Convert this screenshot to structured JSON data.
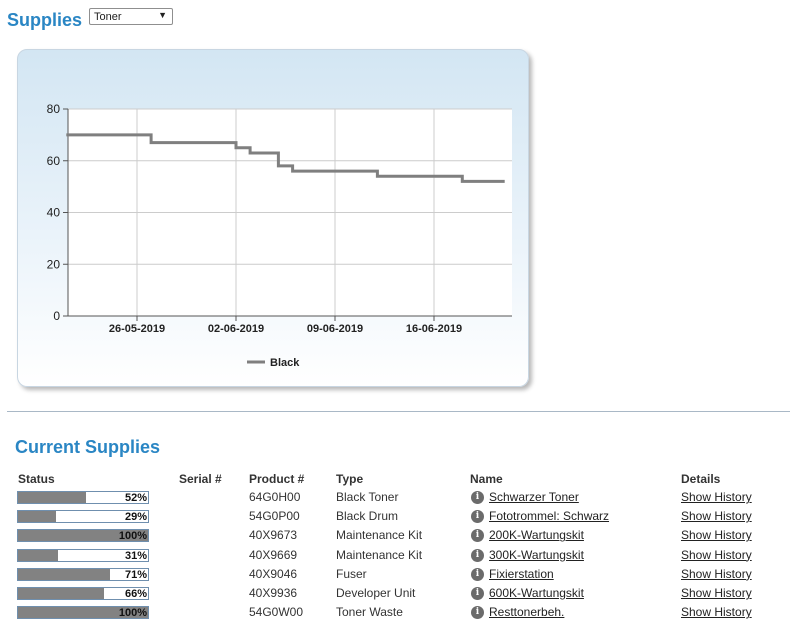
{
  "header": {
    "title": "Supplies",
    "filter_value": "Toner"
  },
  "chart_data": {
    "type": "line",
    "x_tick_labels": [
      "26-05-2019",
      "02-06-2019",
      "09-06-2019",
      "16-06-2019"
    ],
    "x": [
      "2019-05-21",
      "2019-05-27",
      "2019-05-27",
      "2019-06-02",
      "2019-06-02",
      "2019-06-03",
      "2019-06-03",
      "2019-06-05",
      "2019-06-05",
      "2019-06-06",
      "2019-06-06",
      "2019-06-12",
      "2019-06-12",
      "2019-06-18",
      "2019-06-18",
      "2019-06-21"
    ],
    "series": [
      {
        "name": "Black",
        "values": [
          70,
          70,
          67,
          67,
          65,
          65,
          63,
          63,
          58,
          58,
          56,
          56,
          54,
          54,
          52,
          52
        ]
      }
    ],
    "ylim": [
      0,
      80
    ],
    "y_ticks": [
      0,
      20,
      40,
      60,
      80
    ],
    "grid": true,
    "legend_position": "bottom",
    "colors": {
      "series": "#7f7f7f",
      "grid": "#cccccc",
      "axis": "#555555"
    }
  },
  "current_supplies": {
    "title": "Current Supplies",
    "headers": {
      "status": "Status",
      "serial": "Serial #",
      "product": "Product #",
      "type": "Type",
      "name": "Name",
      "details": "Details"
    },
    "rows": [
      {
        "percent": 52,
        "percent_label": "52%",
        "serial": "",
        "product": "64G0H00",
        "type": "Black Toner",
        "name": "Schwarzer Toner",
        "details": "Show History"
      },
      {
        "percent": 29,
        "percent_label": "29%",
        "serial": "",
        "product": "54G0P00",
        "type": "Black Drum",
        "name": "Fototrommel: Schwarz",
        "details": "Show History"
      },
      {
        "percent": 100,
        "percent_label": "100%",
        "serial": "",
        "product": "40X9673",
        "type": "Maintenance Kit",
        "name": "200K-Wartungskit",
        "details": "Show History"
      },
      {
        "percent": 31,
        "percent_label": "31%",
        "serial": "",
        "product": "40X9669",
        "type": "Maintenance Kit",
        "name": "300K-Wartungskit",
        "details": "Show History"
      },
      {
        "percent": 71,
        "percent_label": "71%",
        "serial": "",
        "product": "40X9046",
        "type": "Fuser",
        "name": "Fixierstation",
        "details": "Show History"
      },
      {
        "percent": 66,
        "percent_label": "66%",
        "serial": "",
        "product": "40X9936",
        "type": "Developer Unit",
        "name": "600K-Wartungskit",
        "details": "Show History"
      },
      {
        "percent": 100,
        "percent_label": "100%",
        "serial": "",
        "product": "54G0W00",
        "type": "Toner Waste",
        "name": "Resttonerbeh.",
        "details": "Show History"
      }
    ],
    "info_icon": "info-icon",
    "bar_fill_color": "#828282"
  }
}
